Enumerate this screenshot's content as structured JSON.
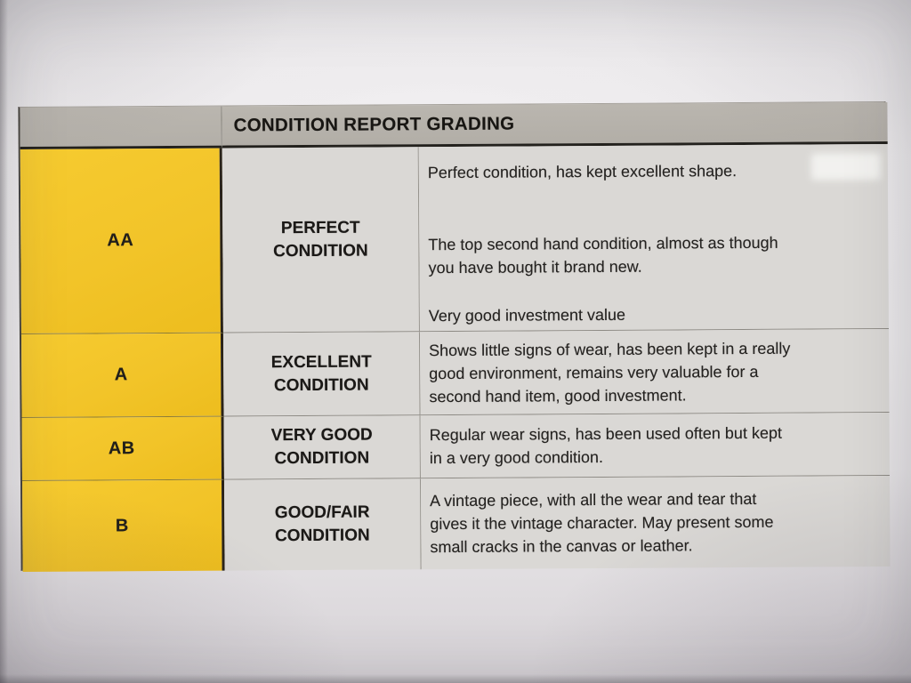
{
  "document": {
    "header": {
      "title": "CONDITION REPORT GRADING"
    },
    "rows": [
      {
        "grade": "AA",
        "condition": "PERFECT\nCONDITION",
        "description": [
          "Perfect condition, has kept excellent shape.",
          "The top second hand condition, almost as though\nyou have bought it brand new.",
          "Very good investment value"
        ]
      },
      {
        "grade": "A",
        "condition": "EXCELLENT\nCONDITION",
        "description": [
          "Shows little signs of wear, has been kept in a really\ngood environment, remains very valuable for a\nsecond hand item, good investment."
        ]
      },
      {
        "grade": "AB",
        "condition": "VERY GOOD\nCONDITION",
        "description": [
          "Regular wear signs, has been used often but kept\nin a very good condition."
        ]
      },
      {
        "grade": "B",
        "condition": "GOOD/FAIR\nCONDITION",
        "description": [
          "A vintage piece, with all the wear and tear that\ngives it the vintage character. May present some\nsmall cracks in the canvas or leather."
        ]
      }
    ],
    "colors": {
      "grade_column_bg": "#f2c429",
      "header_bg": "#b7b3ac",
      "cell_bg": "#dad8d5",
      "paper_bg": "#e8e6e8",
      "border_dark": "#2a2318",
      "text": "#1d1b19"
    }
  }
}
